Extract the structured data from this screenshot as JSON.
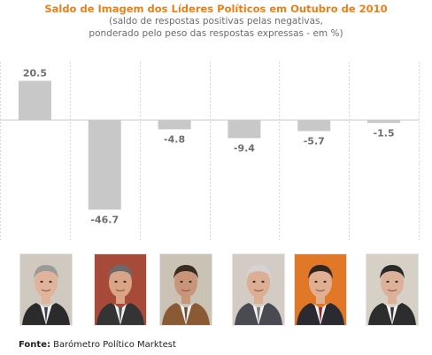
{
  "title": "Saldo de Imagem dos Líderes Políticos em Outubro de 2010",
  "subtitle_line1": "(saldo de respostas positivas pelas negativas,",
  "subtitle_line2": "ponderado pelo peso das respostas expressas - em %)",
  "chart_data": {
    "type": "bar",
    "title": "Saldo de Imagem dos Líderes Políticos em Outubro de 2010",
    "subtitle": "(saldo de respostas positivas pelas negativas, ponderado pelo peso das respostas expressas - em %)",
    "values": [
      20.5,
      -46.7,
      -4.8,
      -9.4,
      -5.7,
      -1.5
    ],
    "value_labels": [
      "20.5",
      "-46.7",
      "-4.8",
      "-9.4",
      "-5.7",
      "-1.5"
    ],
    "ylim": [
      -50,
      25
    ],
    "grid": false,
    "bar_color": "#c8c8c8"
  },
  "photos": [
    {
      "icon": "leader-portrait-1",
      "background": "#cfc9c0",
      "skin": "#e0b49a",
      "hair": "#9a9a9a",
      "suit": "#2b2b2b",
      "tie": "#3a3a5a"
    },
    {
      "icon": "leader-portrait-2",
      "background": "#a84a3a",
      "skin": "#d9a487",
      "hair": "#6a6a6a",
      "suit": "#343434",
      "tie": "#555555"
    },
    {
      "icon": "leader-portrait-3",
      "background": "#c9c2b5",
      "skin": "#c99578",
      "hair": "#3a2a20",
      "suit": "#8a5a35",
      "tie": "#6a4a30"
    },
    {
      "icon": "leader-portrait-4",
      "background": "#d2ccc4",
      "skin": "#dcae93",
      "hair": "#d4d4d4",
      "suit": "#4a4a52",
      "tie": "#7a7a7a"
    },
    {
      "icon": "leader-portrait-5",
      "background": "#e07828",
      "skin": "#e0ae90",
      "hair": "#2f2620",
      "suit": "#2a2a30",
      "tie": "#8a2a2a"
    },
    {
      "icon": "leader-portrait-6",
      "background": "#d6d0c6",
      "skin": "#dbb19a",
      "hair": "#2a2a2a",
      "suit": "#2d2d2d",
      "tie": "#333333"
    }
  ],
  "source_label": "Fonte:",
  "source_text": " Barómetro Político Marktest"
}
